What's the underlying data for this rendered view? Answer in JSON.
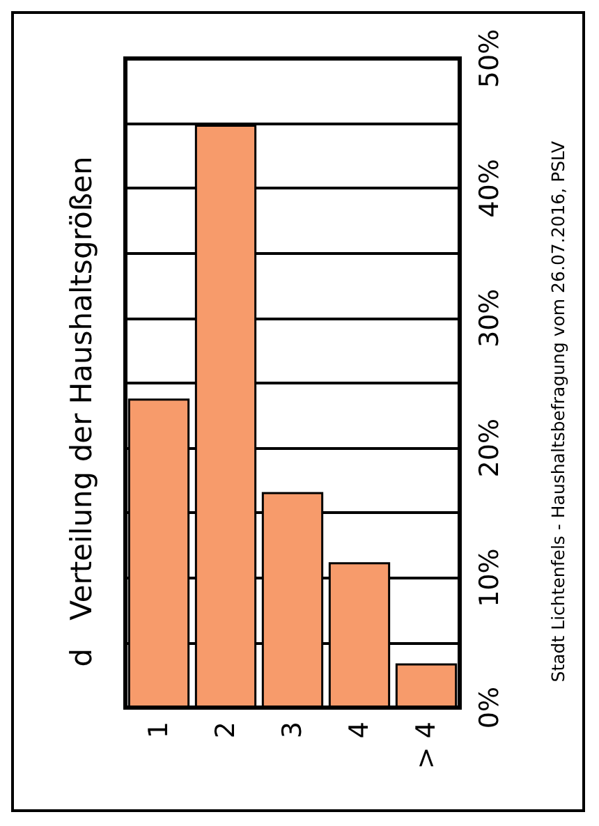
{
  "chart_data": {
    "type": "bar",
    "title": "d   Verteilung der Haushaltsgrößen",
    "annotations": [
      "Stadt Lichtenfels - Haushaltsbefragung vom 26.07.2016, PSLV"
    ],
    "categories": [
      "1",
      "2",
      "3",
      "4",
      "> 4"
    ],
    "values": [
      23.8,
      44.9,
      16.6,
      11.2,
      3.4
    ],
    "color": "#f79b6b",
    "ylim": [
      0,
      50
    ],
    "yticks": [
      {
        "value": 0,
        "label": "0%"
      },
      {
        "value": 5,
        "label": null
      },
      {
        "value": 10,
        "label": "10%"
      },
      {
        "value": 15,
        "label": null
      },
      {
        "value": 20,
        "label": "20%"
      },
      {
        "value": 25,
        "label": null
      },
      {
        "value": 30,
        "label": "30%"
      },
      {
        "value": 35,
        "label": null
      },
      {
        "value": 40,
        "label": "40%"
      },
      {
        "value": 45,
        "label": null
      },
      {
        "value": 50,
        "label": "50%"
      }
    ],
    "grid": "y"
  }
}
